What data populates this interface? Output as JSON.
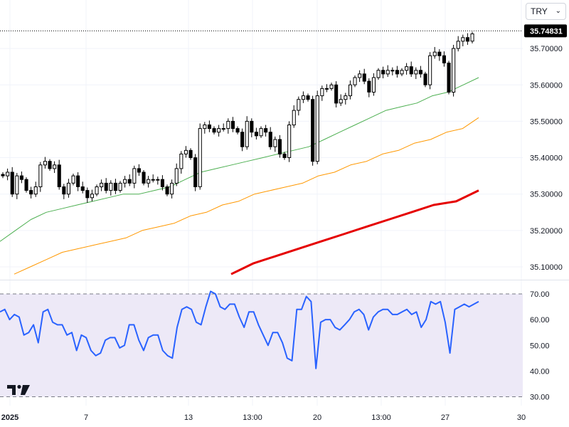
{
  "currency_selector": {
    "label": "TRY"
  },
  "last_price": "35.74831",
  "colors": {
    "up_candle": "#ffffff",
    "down_candle": "#000000",
    "ma_short": "#4caf50",
    "ma_mid": "#ff9800",
    "ma_long": "#e50000",
    "rsi_line": "#2962ff",
    "rsi_band": "#ede9f7"
  },
  "chart_data": [
    {
      "type": "candlestick",
      "y_ticks": [
        "35.10000",
        "35.20000",
        "35.30000",
        "35.40000",
        "35.50000",
        "35.60000",
        "35.70000"
      ],
      "ylim": [
        35.07,
        35.77
      ],
      "x_ticks": [
        "2025",
        "7",
        "13",
        "13:00",
        "20",
        "13:00",
        "27",
        "30"
      ],
      "closes": [
        35.35,
        35.36,
        35.3,
        35.35,
        35.34,
        35.31,
        35.3,
        35.32,
        35.38,
        35.39,
        35.37,
        35.38,
        35.32,
        35.3,
        35.33,
        35.35,
        35.32,
        35.31,
        35.29,
        35.3,
        35.32,
        35.33,
        35.31,
        35.33,
        35.31,
        35.33,
        35.34,
        35.33,
        35.37,
        35.36,
        35.33,
        35.34,
        35.34,
        35.34,
        35.32,
        35.3,
        35.33,
        35.37,
        35.41,
        35.42,
        35.4,
        35.32,
        35.48,
        35.49,
        35.48,
        35.47,
        35.48,
        35.48,
        35.5,
        35.48,
        35.47,
        35.43,
        35.5,
        35.47,
        35.46,
        35.48,
        35.47,
        35.43,
        35.45,
        35.41,
        35.4,
        35.49,
        35.53,
        35.56,
        35.57,
        35.56,
        35.39,
        35.57,
        35.59,
        35.59,
        35.6,
        35.55,
        35.56,
        35.57,
        35.6,
        35.62,
        35.63,
        35.61,
        35.58,
        35.62,
        35.64,
        35.63,
        35.64,
        35.64,
        35.63,
        35.64,
        35.65,
        35.63,
        35.64,
        35.63,
        35.6,
        35.68,
        35.69,
        35.68,
        35.66,
        35.58,
        35.7,
        35.72,
        35.73,
        35.72,
        35.74
      ],
      "series": [
        {
          "values": [
            35.17,
            35.2,
            35.23,
            35.25,
            35.26,
            35.27,
            35.28,
            35.29,
            35.3,
            35.3,
            35.31,
            35.32,
            35.34,
            35.36,
            35.37,
            35.38,
            35.39,
            35.4,
            35.41,
            35.42,
            35.43,
            35.45,
            35.47,
            35.49,
            35.51,
            35.53,
            35.54,
            35.55,
            35.57,
            35.58,
            35.6,
            35.62
          ]
        },
        {
          "values": [
            35.08,
            35.1,
            35.12,
            35.14,
            35.15,
            35.16,
            35.17,
            35.18,
            35.2,
            35.21,
            35.22,
            35.24,
            35.25,
            35.27,
            35.28,
            35.3,
            35.31,
            35.32,
            35.33,
            35.35,
            35.36,
            35.38,
            35.39,
            35.41,
            35.42,
            35.44,
            35.45,
            35.47,
            35.48,
            35.51
          ]
        },
        {
          "values": [
            35.08,
            35.11,
            35.13,
            35.15,
            35.17,
            35.19,
            35.21,
            35.23,
            35.25,
            35.27,
            35.28,
            35.31
          ]
        }
      ]
    },
    {
      "type": "line",
      "y_ticks": [
        "30.00",
        "40.00",
        "50.00",
        "60.00",
        "70.00"
      ],
      "ylim": [
        30,
        70
      ],
      "values": [
        63,
        64,
        60,
        62,
        61,
        54,
        55,
        58,
        51,
        63,
        64,
        59,
        58,
        58,
        54,
        55,
        48,
        54,
        53,
        48,
        46,
        47,
        52,
        53,
        53,
        49,
        50,
        58,
        58,
        52,
        48,
        53,
        54,
        54,
        48,
        46,
        45,
        57,
        64,
        65,
        64,
        59,
        58,
        65,
        71,
        70,
        65,
        64,
        66,
        66,
        61,
        57,
        63,
        63,
        58,
        54,
        50,
        55,
        55,
        51,
        45,
        44,
        64,
        64,
        69,
        67,
        41,
        59,
        60,
        60,
        57,
        56,
        58,
        60,
        63,
        64,
        62,
        56,
        61,
        63,
        64,
        64,
        62,
        62,
        63,
        64,
        62,
        63,
        57,
        60,
        67,
        66,
        67,
        59,
        47,
        64,
        65,
        66,
        65,
        66,
        67
      ]
    }
  ]
}
